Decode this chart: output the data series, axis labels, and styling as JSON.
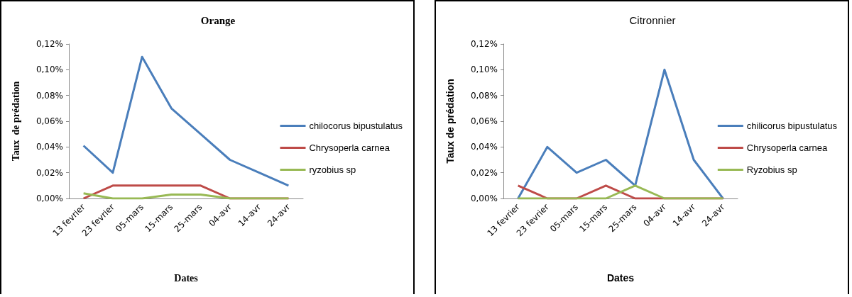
{
  "chart_data": [
    {
      "type": "line",
      "title": "Orange",
      "xlabel": "Dates",
      "ylabel": "Taux  de prédation",
      "categories": [
        "13 fevrier",
        "23 fevrier",
        "05-mars",
        "15-mars",
        "25-mars",
        "04-avr",
        "14-avr",
        "24-avr"
      ],
      "series": [
        {
          "name": "chilocorus bipustulatus",
          "color": "#4a7ebb",
          "values": [
            0.041,
            0.02,
            0.11,
            0.07,
            0.05,
            0.03,
            0.02,
            0.01
          ]
        },
        {
          "name": "Chrysoperla carnea",
          "color": "#be4b48",
          "values": [
            0,
            0.01,
            0.01,
            0.01,
            0.01,
            0,
            0,
            0
          ]
        },
        {
          "name": "ryzobius sp",
          "color": "#98b954",
          "values": [
            0.004,
            0,
            0,
            0.003,
            0.003,
            0,
            0,
            0
          ]
        }
      ],
      "ylim": [
        0,
        0.12
      ],
      "yticks": [
        {
          "value": 0,
          "label": "0,00%"
        },
        {
          "value": 0.02,
          "label": "0,02%"
        },
        {
          "value": 0.04,
          "label": "0,04%"
        },
        {
          "value": 0.06,
          "label": "0,06%"
        },
        {
          "value": 0.08,
          "label": "0,08%"
        },
        {
          "value": 0.1,
          "label": "0,10%"
        },
        {
          "value": 0.12,
          "label": "0,12%"
        }
      ],
      "grid": false,
      "legend": "right",
      "marker": "none",
      "line_style": "solid"
    },
    {
      "type": "line",
      "title": "Citronnier",
      "xlabel": "Dates",
      "ylabel": "Taux de prédation",
      "categories": [
        "13 fevrier",
        "23 fevrier",
        "05-mars",
        "15-mars",
        "25-mars",
        "04-avr",
        "14-avr",
        "24-avr"
      ],
      "series": [
        {
          "name": "chilicorus bipustulatus",
          "color": "#4a7ebb",
          "values": [
            0,
            0.04,
            0.02,
            0.03,
            0.01,
            0.1,
            0.03,
            0
          ]
        },
        {
          "name": "Chrysoperla carnea",
          "color": "#be4b48",
          "values": [
            0.01,
            0,
            0,
            0.01,
            0,
            0,
            0,
            0
          ]
        },
        {
          "name": "Ryzobius sp",
          "color": "#98b954",
          "values": [
            0,
            0,
            0,
            0,
            0.01,
            0,
            0,
            0
          ]
        }
      ],
      "ylim": [
        0,
        0.12
      ],
      "yticks": [
        {
          "value": 0,
          "label": "0,00%"
        },
        {
          "value": 0.02,
          "label": "0,02%"
        },
        {
          "value": 0.04,
          "label": "0,04%"
        },
        {
          "value": 0.06,
          "label": "0,06%"
        },
        {
          "value": 0.08,
          "label": "0,08%"
        },
        {
          "value": 0.1,
          "label": "0,10%"
        },
        {
          "value": 0.12,
          "label": "0,12%"
        }
      ],
      "grid": false,
      "legend": "right",
      "marker": "none",
      "line_style": "solid"
    }
  ]
}
